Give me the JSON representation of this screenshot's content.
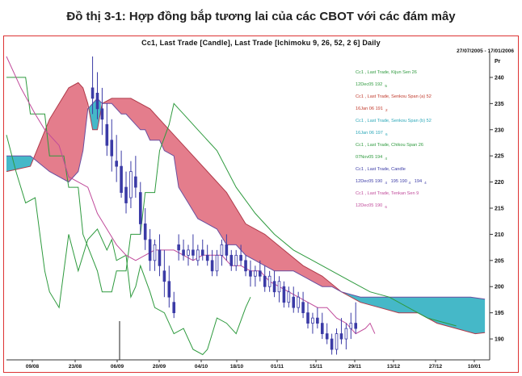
{
  "page_title": "Đồ thị 3-1: Hợp đồng bắp tương lai của các CBOT với các đám mây",
  "chart_header": "Cc1, Last Trade [Candle], Last Trade [Ichimoku 9, 26, 52, 2 6] Daily",
  "date_range": "27/07/2005 - 17/01/2006",
  "colors": {
    "candle": "#3b3ba6",
    "kijun": "#2e9a3e",
    "tenkan": "#c04a9a",
    "cloud_bullish": "#e47d8c",
    "cloud_bearish": "#45b8c8",
    "frame": "#dd3333"
  },
  "legend": [
    {
      "name": "Cc1 , Last Trade, Kijun Sen 26",
      "value": "12Dec05 192",
      "sub": "5",
      "color": "#2e9a3e"
    },
    {
      "name": "Cc1 , Last Trade, Senkou Span (a) 52",
      "value": "16Jan 06 191",
      "sub": "2",
      "color": "#c0392b"
    },
    {
      "name": "Cc1 , Last Trade, Senkou Span (b) 52",
      "value": "16Jan 06 197",
      "sub": "6",
      "color": "#2aa7b8"
    },
    {
      "name": "Cc1 , Last Trade, Chikou Span 26",
      "value": "07Nov05 194",
      "sub": "4",
      "color": "#2e9a3e"
    },
    {
      "name": "Cc1 , Last Trade, Candle",
      "value": "12Dec05 190",
      "sub": "4",
      "extra": "195  190",
      "extra_sub": "4",
      "extra2": "194",
      "extra2_sub": "4",
      "color": "#3b3ba6"
    },
    {
      "name": "Cc1 , Last Trade, Tenkan Sen 9",
      "value": "12Dec05 190",
      "sub": "6",
      "color": "#c04a9a"
    }
  ],
  "chart_data": {
    "type": "candlestick",
    "title": "Cc1, Last Trade [Candle], Last Trade [Ichimoku 9, 26, 52, 2 6] Daily",
    "xlabel": "",
    "ylabel": "Pr",
    "ylim": [
      186,
      244
    ],
    "yticks": [
      190,
      195,
      200,
      205,
      210,
      215,
      220,
      225,
      230,
      235,
      240
    ],
    "xticks": [
      "09/08",
      "23/08",
      "06/09",
      "20/09",
      "04/10",
      "18/10",
      "01/11",
      "15/11",
      "29/11",
      "13/12",
      "27/12",
      "10/01"
    ],
    "grid": false,
    "legend_position": "top-right",
    "kijun_sen": [
      [
        0,
        240
      ],
      [
        4,
        240
      ],
      [
        5,
        233
      ],
      [
        8,
        233
      ],
      [
        9,
        225
      ],
      [
        12,
        225
      ],
      [
        13,
        219
      ],
      [
        15,
        219
      ],
      [
        16,
        210
      ],
      [
        19,
        203
      ],
      [
        20,
        199
      ],
      [
        22,
        199
      ],
      [
        23,
        203
      ],
      [
        25,
        203
      ],
      [
        26,
        210
      ],
      [
        28,
        210
      ],
      [
        29,
        218
      ],
      [
        31,
        218
      ],
      [
        32,
        226
      ],
      [
        34,
        231
      ],
      [
        35,
        235
      ],
      [
        36,
        234
      ],
      [
        37,
        233
      ],
      [
        40,
        230
      ],
      [
        44,
        226
      ],
      [
        48,
        219
      ],
      [
        52,
        214
      ],
      [
        56,
        210
      ],
      [
        60,
        207
      ],
      [
        64,
        205
      ],
      [
        68,
        203
      ],
      [
        72,
        201
      ],
      [
        76,
        199
      ],
      [
        80,
        198
      ],
      [
        84,
        196
      ],
      [
        88,
        194
      ],
      [
        92,
        193
      ],
      [
        94,
        192.5
      ]
    ],
    "tenkan_sen": [
      [
        0,
        244
      ],
      [
        3,
        238
      ],
      [
        6,
        233
      ],
      [
        8,
        230
      ],
      [
        11,
        227
      ],
      [
        13,
        221
      ],
      [
        15,
        220
      ],
      [
        17,
        219
      ],
      [
        19,
        214
      ],
      [
        21,
        211
      ],
      [
        23,
        208
      ],
      [
        25,
        206
      ],
      [
        27,
        205
      ],
      [
        29,
        206
      ],
      [
        31,
        207
      ],
      [
        33,
        207
      ],
      [
        35,
        207
      ],
      [
        37,
        206
      ],
      [
        39,
        205
      ],
      [
        41,
        206
      ],
      [
        43,
        206
      ],
      [
        45,
        206
      ],
      [
        47,
        204
      ],
      [
        49,
        204
      ],
      [
        51,
        203
      ],
      [
        53,
        203
      ],
      [
        55,
        201
      ],
      [
        57,
        200
      ],
      [
        59,
        199
      ],
      [
        61,
        198
      ],
      [
        63,
        197
      ],
      [
        65,
        196
      ],
      [
        67,
        196
      ],
      [
        69,
        194
      ],
      [
        71,
        193
      ],
      [
        72,
        192
      ],
      [
        73,
        191
      ],
      [
        75,
        192
      ],
      [
        76,
        193
      ],
      [
        77,
        191
      ]
    ],
    "chikou_span": [
      [
        0,
        229
      ],
      [
        2,
        222
      ],
      [
        4,
        216
      ],
      [
        6,
        217
      ],
      [
        7,
        210
      ],
      [
        8,
        203
      ],
      [
        9,
        199
      ],
      [
        11,
        196
      ],
      [
        13,
        210
      ],
      [
        15,
        203
      ],
      [
        17,
        209
      ],
      [
        19,
        211
      ],
      [
        21,
        207
      ],
      [
        22,
        209
      ],
      [
        23,
        205
      ],
      [
        25,
        206
      ],
      [
        26,
        198
      ],
      [
        27,
        200
      ],
      [
        28,
        204
      ],
      [
        30,
        199
      ],
      [
        31,
        196
      ],
      [
        33,
        195
      ],
      [
        35,
        191
      ],
      [
        37,
        192
      ],
      [
        39,
        188
      ],
      [
        41,
        187
      ],
      [
        42,
        188
      ],
      [
        44,
        194
      ],
      [
        46,
        193
      ],
      [
        48,
        191
      ],
      [
        50,
        196
      ],
      [
        51,
        198
      ]
    ],
    "senkou_span_a": [
      [
        0,
        222
      ],
      [
        5,
        223
      ],
      [
        9,
        232
      ],
      [
        13,
        238
      ],
      [
        15,
        239
      ],
      [
        16,
        238
      ],
      [
        17,
        235
      ],
      [
        18,
        230
      ],
      [
        19,
        230
      ],
      [
        20,
        235
      ],
      [
        22,
        236
      ],
      [
        26,
        236
      ],
      [
        30,
        234
      ],
      [
        34,
        230
      ],
      [
        38,
        226
      ],
      [
        42,
        222
      ],
      [
        46,
        218
      ],
      [
        50,
        212
      ],
      [
        54,
        210
      ],
      [
        58,
        207
      ],
      [
        62,
        204
      ],
      [
        66,
        202
      ],
      [
        70,
        199
      ],
      [
        74,
        197
      ],
      [
        78,
        196
      ],
      [
        82,
        195
      ],
      [
        86,
        195
      ],
      [
        90,
        193
      ],
      [
        94,
        192
      ],
      [
        98,
        191
      ],
      [
        100,
        191.2
      ]
    ],
    "senkou_span_b": [
      [
        0,
        225
      ],
      [
        5,
        225
      ],
      [
        9,
        222
      ],
      [
        13,
        220
      ],
      [
        15,
        222
      ],
      [
        16,
        226
      ],
      [
        17,
        234
      ],
      [
        18,
        235
      ],
      [
        19,
        236
      ],
      [
        20,
        235
      ],
      [
        22,
        235
      ],
      [
        24,
        233
      ],
      [
        25,
        233
      ],
      [
        26,
        232
      ],
      [
        28,
        230
      ],
      [
        29,
        230
      ],
      [
        30,
        228
      ],
      [
        32,
        228
      ],
      [
        33,
        226
      ],
      [
        35,
        225
      ],
      [
        36,
        219
      ],
      [
        38,
        216
      ],
      [
        40,
        213
      ],
      [
        42,
        212
      ],
      [
        44,
        211
      ],
      [
        46,
        208
      ],
      [
        48,
        208
      ],
      [
        50,
        206
      ],
      [
        52,
        205
      ],
      [
        54,
        204
      ],
      [
        56,
        203
      ],
      [
        58,
        203
      ],
      [
        60,
        203
      ],
      [
        62,
        202
      ],
      [
        64,
        201
      ],
      [
        66,
        200
      ],
      [
        68,
        200
      ],
      [
        70,
        199
      ],
      [
        74,
        198
      ],
      [
        78,
        198
      ],
      [
        82,
        198
      ],
      [
        86,
        198
      ],
      [
        90,
        198
      ],
      [
        94,
        198
      ],
      [
        97,
        198
      ],
      [
        100,
        197.6
      ]
    ],
    "candles": [
      {
        "t": 0,
        "o": 238,
        "h": 244,
        "l": 233,
        "c": 236
      },
      {
        "t": 1,
        "o": 237,
        "h": 241,
        "l": 232,
        "c": 234
      },
      {
        "t": 2,
        "o": 234,
        "h": 238,
        "l": 229,
        "c": 232
      },
      {
        "t": 3,
        "o": 231,
        "h": 235,
        "l": 225,
        "c": 227
      },
      {
        "t": 4,
        "o": 228,
        "h": 232,
        "l": 222,
        "c": 225
      },
      {
        "t": 5,
        "o": 224,
        "h": 229,
        "l": 220,
        "c": 223
      },
      {
        "t": 6,
        "o": 223,
        "h": 226,
        "l": 217,
        "c": 218
      },
      {
        "t": 7,
        "o": 219,
        "h": 222,
        "l": 214,
        "c": 216
      },
      {
        "t": 8,
        "o": 217,
        "h": 224,
        "l": 215,
        "c": 222
      },
      {
        "t": 9,
        "o": 221,
        "h": 225,
        "l": 217,
        "c": 219
      },
      {
        "t": 10,
        "o": 218,
        "h": 220,
        "l": 210,
        "c": 212
      },
      {
        "t": 11,
        "o": 212,
        "h": 215,
        "l": 207,
        "c": 209
      },
      {
        "t": 12,
        "o": 209,
        "h": 211,
        "l": 203,
        "c": 205
      },
      {
        "t": 13,
        "o": 205,
        "h": 209,
        "l": 203,
        "c": 208
      },
      {
        "t": 14,
        "o": 207,
        "h": 210,
        "l": 202,
        "c": 204
      },
      {
        "t": 15,
        "o": 203,
        "h": 207,
        "l": 198,
        "c": 201
      },
      {
        "t": 16,
        "o": 201,
        "h": 204,
        "l": 196,
        "c": 198
      },
      {
        "t": 17,
        "o": 197,
        "h": 199,
        "l": 194,
        "c": 195
      },
      {
        "t": 18,
        "o": 208,
        "h": 210,
        "l": 205,
        "c": 207
      },
      {
        "t": 19,
        "o": 207,
        "h": 209,
        "l": 205,
        "c": 206
      },
      {
        "t": 20,
        "o": 206,
        "h": 208,
        "l": 204,
        "c": 207
      },
      {
        "t": 21,
        "o": 207,
        "h": 210,
        "l": 205,
        "c": 206
      },
      {
        "t": 22,
        "o": 205,
        "h": 208,
        "l": 204,
        "c": 207
      },
      {
        "t": 23,
        "o": 207,
        "h": 209,
        "l": 205,
        "c": 206
      },
      {
        "t": 24,
        "o": 206,
        "h": 208,
        "l": 204,
        "c": 205
      },
      {
        "t": 25,
        "o": 205,
        "h": 207,
        "l": 202,
        "c": 203
      },
      {
        "t": 26,
        "o": 203,
        "h": 207,
        "l": 202,
        "c": 206
      },
      {
        "t": 27,
        "o": 206,
        "h": 209,
        "l": 204,
        "c": 208
      },
      {
        "t": 28,
        "o": 208,
        "h": 210,
        "l": 205,
        "c": 206
      },
      {
        "t": 29,
        "o": 206,
        "h": 207,
        "l": 203,
        "c": 204
      },
      {
        "t": 30,
        "o": 204,
        "h": 207,
        "l": 203,
        "c": 206
      },
      {
        "t": 31,
        "o": 206,
        "h": 208,
        "l": 204,
        "c": 205
      },
      {
        "t": 32,
        "o": 205,
        "h": 206,
        "l": 202,
        "c": 203
      },
      {
        "t": 33,
        "o": 203,
        "h": 205,
        "l": 200,
        "c": 202
      },
      {
        "t": 34,
        "o": 202,
        "h": 204,
        "l": 200,
        "c": 203
      },
      {
        "t": 35,
        "o": 203,
        "h": 205,
        "l": 201,
        "c": 202
      },
      {
        "t": 36,
        "o": 202,
        "h": 204,
        "l": 199,
        "c": 200
      },
      {
        "t": 37,
        "o": 200,
        "h": 203,
        "l": 199,
        "c": 202
      },
      {
        "t": 38,
        "o": 201,
        "h": 203,
        "l": 198,
        "c": 199
      },
      {
        "t": 39,
        "o": 199,
        "h": 202,
        "l": 197,
        "c": 201
      },
      {
        "t": 40,
        "o": 200,
        "h": 201,
        "l": 196,
        "c": 197
      },
      {
        "t": 41,
        "o": 197,
        "h": 200,
        "l": 196,
        "c": 199
      },
      {
        "t": 42,
        "o": 198,
        "h": 200,
        "l": 195,
        "c": 196
      },
      {
        "t": 43,
        "o": 196,
        "h": 199,
        "l": 195,
        "c": 198
      },
      {
        "t": 44,
        "o": 197,
        "h": 199,
        "l": 194,
        "c": 195
      },
      {
        "t": 45,
        "o": 195,
        "h": 197,
        "l": 192,
        "c": 193
      },
      {
        "t": 46,
        "o": 193,
        "h": 195,
        "l": 191,
        "c": 194
      },
      {
        "t": 47,
        "o": 194,
        "h": 196,
        "l": 192,
        "c": 193
      },
      {
        "t": 48,
        "o": 193,
        "h": 195,
        "l": 190,
        "c": 191
      },
      {
        "t": 49,
        "o": 191,
        "h": 193,
        "l": 189,
        "c": 190
      },
      {
        "t": 50,
        "o": 190,
        "h": 191,
        "l": 187,
        "c": 188
      },
      {
        "t": 51,
        "o": 188,
        "h": 192,
        "l": 187,
        "c": 191
      },
      {
        "t": 52,
        "o": 191,
        "h": 194,
        "l": 189,
        "c": 190
      },
      {
        "t": 53,
        "o": 190,
        "h": 193,
        "l": 188,
        "c": 192
      },
      {
        "t": 54,
        "o": 192,
        "h": 195,
        "l": 190,
        "c": 193
      },
      {
        "t": 55,
        "o": 193,
        "h": 197,
        "l": 191,
        "c": 192
      }
    ]
  }
}
